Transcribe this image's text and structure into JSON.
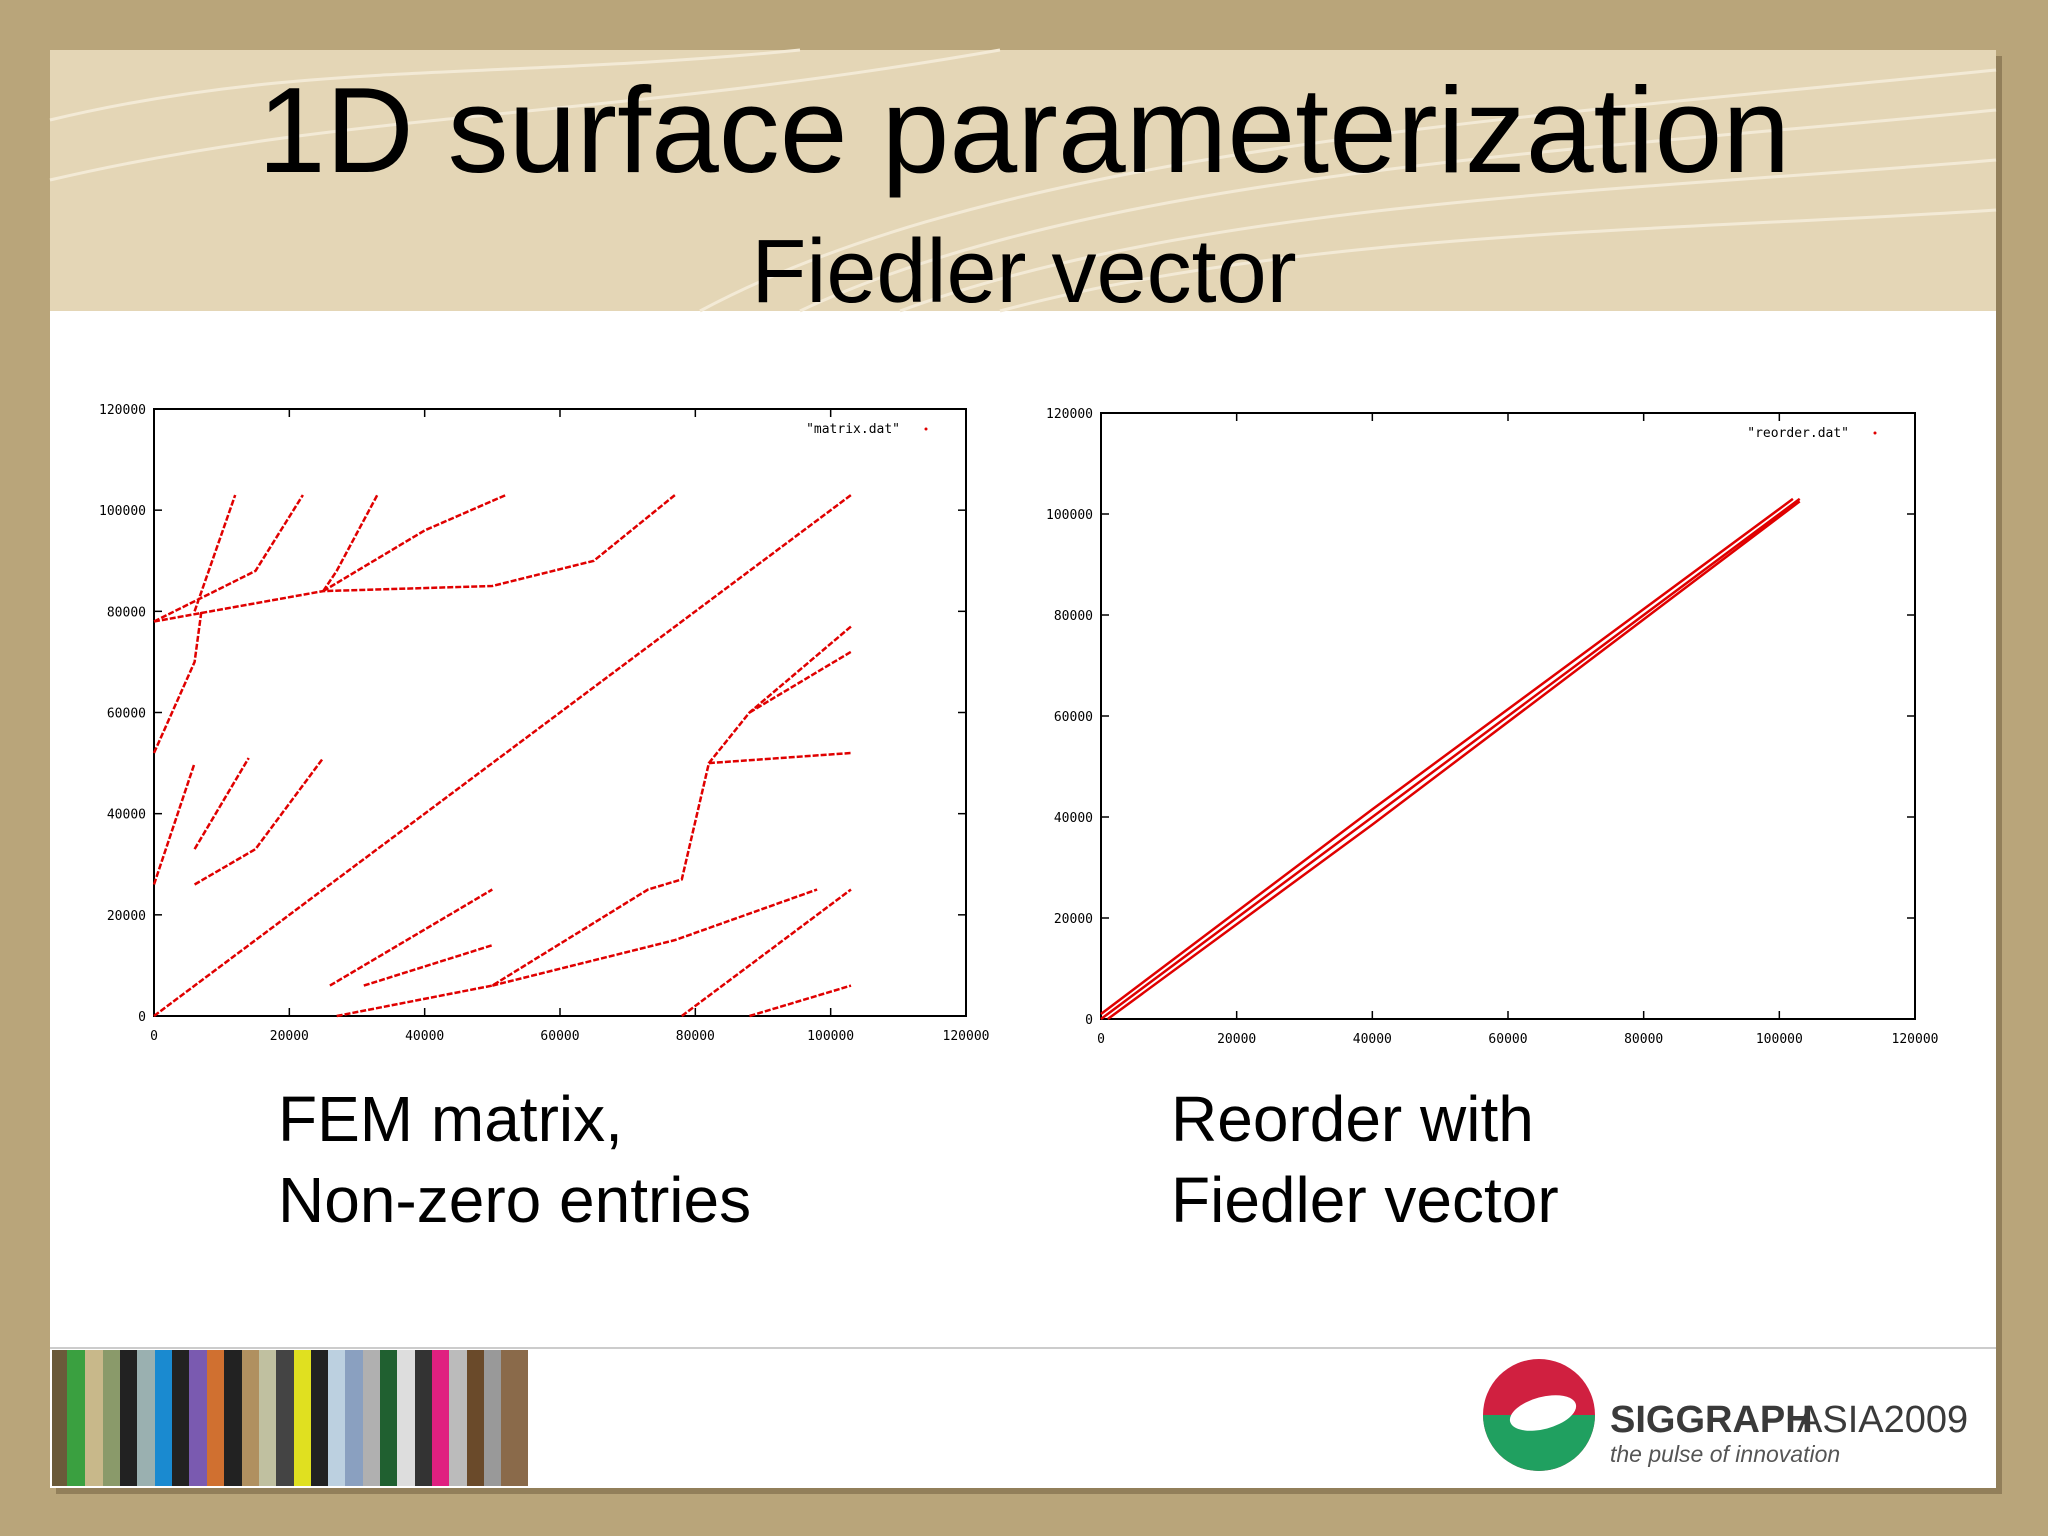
{
  "slide": {
    "title": "1D surface parameterization",
    "subtitle": "Fiedler vector",
    "captions": [
      [
        "FEM matrix,",
        "Non-zero entries"
      ],
      [
        "Reorder with",
        "Fiedler vector"
      ]
    ],
    "logo": {
      "name": "SIGGRAPH",
      "suffix": "ASIA2009",
      "tagline": "the pulse of innovation"
    }
  },
  "chart_data": [
    {
      "type": "line",
      "xlim": [
        0,
        120000
      ],
      "ylim": [
        0,
        120000
      ],
      "xticks": [
        0,
        20000,
        40000,
        60000,
        80000,
        100000,
        120000
      ],
      "yticks": [
        0,
        20000,
        40000,
        60000,
        80000,
        100000,
        120000
      ],
      "legend": "top-right",
      "series": [
        {
          "name": "\"matrix.dat\"",
          "color": "#e00000",
          "x": [
            0,
            103000,
            null,
            0,
            25000,
            50000,
            65000,
            77000,
            null,
            25000,
            40000,
            52000,
            null,
            25000,
            27000,
            33000,
            null,
            0,
            15000,
            22000,
            null,
            6000,
            12000,
            null,
            0,
            6000,
            7000,
            null,
            0,
            6000,
            null,
            6000,
            15000,
            25000,
            null,
            6000,
            14000,
            null,
            27000,
            50000,
            73000,
            78000,
            82000,
            88000,
            103000,
            null,
            50000,
            77000,
            98000,
            null,
            26000,
            50000,
            null,
            31000,
            50000,
            null,
            78000,
            88000,
            103000,
            null,
            88000,
            103000,
            null,
            82000,
            103000,
            null,
            88000,
            103000
          ],
          "values": [
            0,
            103000,
            null,
            78000,
            84000,
            85000,
            90000,
            103000,
            null,
            84000,
            96000,
            103000,
            null,
            84000,
            88000,
            103000,
            null,
            78000,
            88000,
            103000,
            null,
            80000,
            103000,
            null,
            52000,
            70000,
            80000,
            null,
            26000,
            50000,
            null,
            26000,
            33000,
            51000,
            null,
            33000,
            51000,
            null,
            0,
            6000,
            25000,
            27000,
            50000,
            60000,
            77000,
            null,
            6000,
            15000,
            25000,
            null,
            6000,
            25000,
            null,
            6000,
            14000,
            null,
            0,
            10000,
            25000,
            null,
            0,
            6000,
            null,
            50000,
            52000,
            null,
            60000,
            72000
          ]
        }
      ]
    },
    {
      "type": "line",
      "xlim": [
        0,
        120000
      ],
      "ylim": [
        0,
        120000
      ],
      "xticks": [
        0,
        20000,
        40000,
        60000,
        80000,
        100000,
        120000
      ],
      "yticks": [
        0,
        20000,
        40000,
        60000,
        80000,
        100000,
        120000
      ],
      "legend": "top-right",
      "series": [
        {
          "name": "\"reorder.dat\"",
          "color": "#e00000",
          "x": [
            0,
            103000,
            null,
            1000,
            40000,
            103000,
            null,
            0,
            40000,
            102000
          ],
          "values": [
            0,
            103000,
            null,
            0,
            38500,
            102500,
            null,
            1000,
            41500,
            103000
          ]
        }
      ]
    }
  ]
}
